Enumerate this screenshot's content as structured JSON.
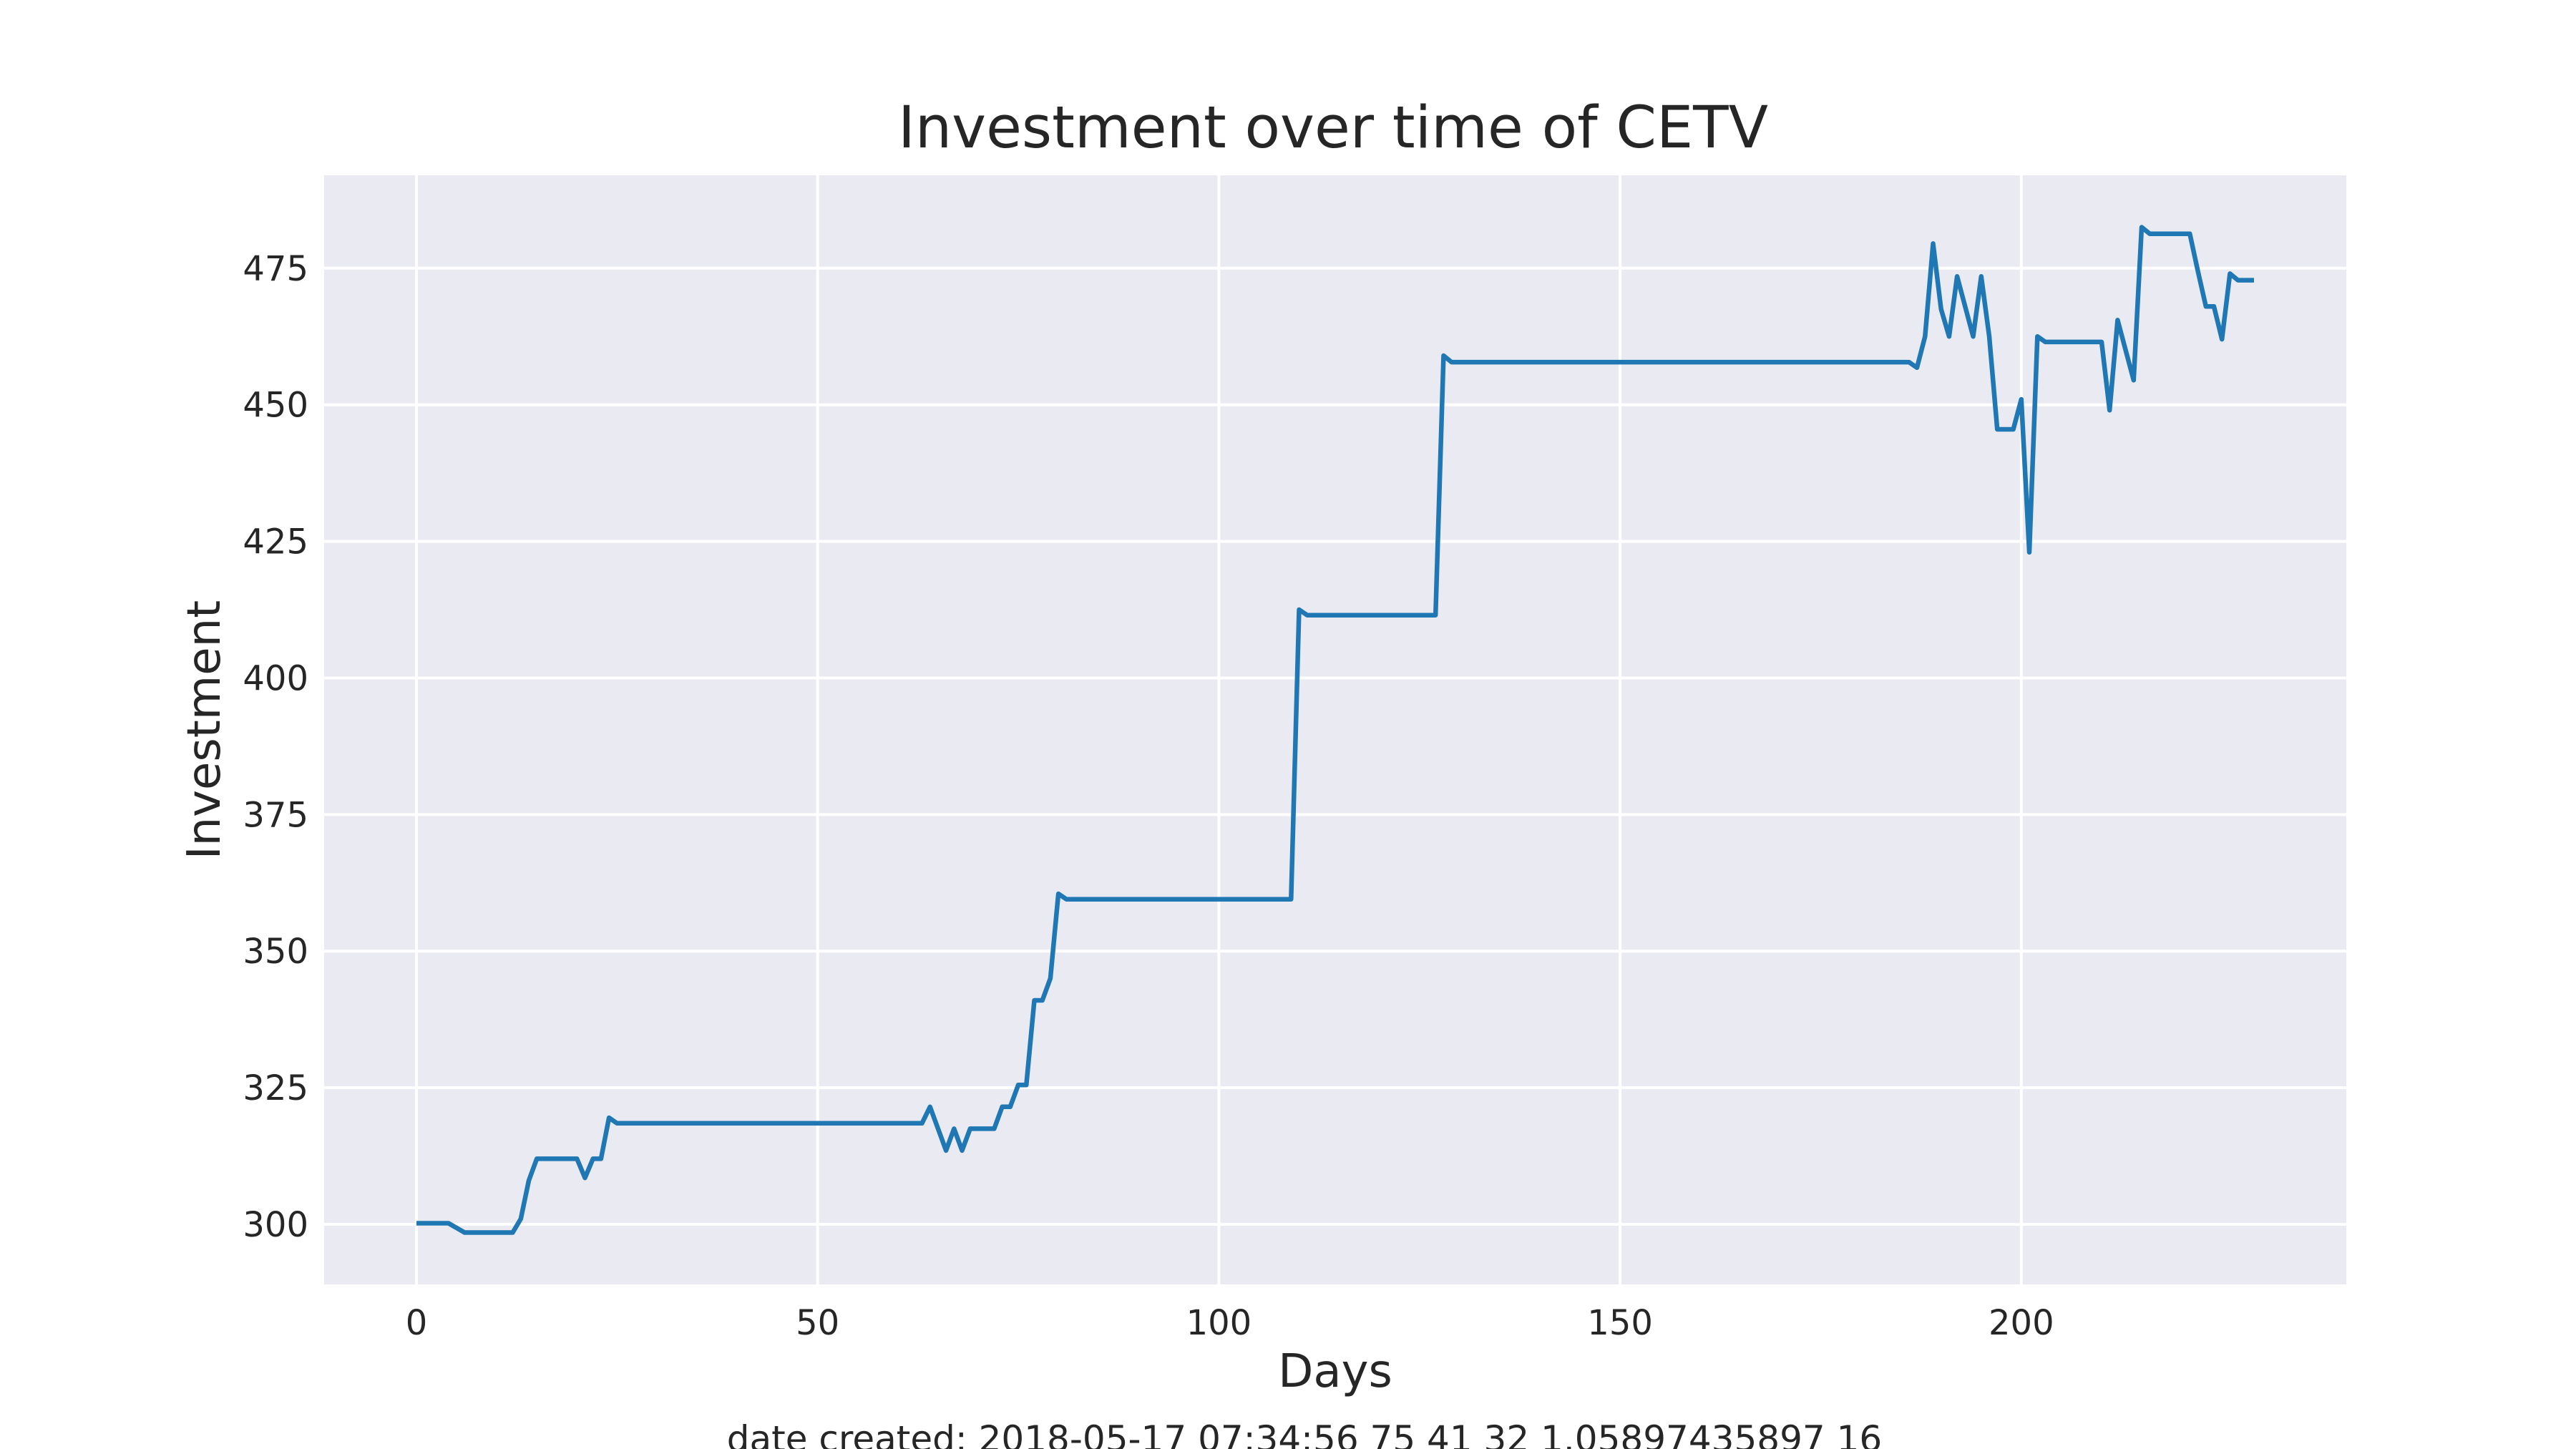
{
  "chart_data": {
    "type": "line",
    "title": "Investment over time of CETV",
    "xlabel": "Days",
    "ylabel": "Investment",
    "xlim": [
      -11.5,
      240.5
    ],
    "ylim": [
      289,
      492
    ],
    "x_ticks": [
      0,
      50,
      100,
      150,
      200
    ],
    "y_ticks": [
      300,
      325,
      350,
      375,
      400,
      425,
      450,
      475
    ],
    "grid": true,
    "legend": "none",
    "series": [
      {
        "color": "#1f77b4",
        "points": [
          [
            0,
            300.2
          ],
          [
            4,
            300.2
          ],
          [
            6,
            298.5
          ],
          [
            12,
            298.5
          ],
          [
            13,
            301
          ],
          [
            14,
            308
          ],
          [
            15,
            312
          ],
          [
            20,
            312
          ],
          [
            21,
            308.5
          ],
          [
            22,
            312
          ],
          [
            23,
            312
          ],
          [
            24,
            319.5
          ],
          [
            25,
            318.5
          ],
          [
            63,
            318.5
          ],
          [
            64,
            321.5
          ],
          [
            66,
            313.5
          ],
          [
            67,
            317.5
          ],
          [
            68,
            313.5
          ],
          [
            69,
            317.5
          ],
          [
            72,
            317.5
          ],
          [
            73,
            321.5
          ],
          [
            74,
            321.5
          ],
          [
            75,
            325.5
          ],
          [
            76,
            325.5
          ],
          [
            77,
            341
          ],
          [
            78,
            341
          ],
          [
            79,
            345
          ],
          [
            80,
            360.5
          ],
          [
            81,
            359.5
          ],
          [
            109,
            359.5
          ],
          [
            110,
            412.5
          ],
          [
            111,
            411.5
          ],
          [
            127,
            411.5
          ],
          [
            128,
            459
          ],
          [
            129,
            457.8
          ],
          [
            186,
            457.8
          ],
          [
            187,
            456.8
          ],
          [
            188,
            462.5
          ],
          [
            189,
            479.5
          ],
          [
            190,
            467.5
          ],
          [
            191,
            462.5
          ],
          [
            192,
            473.5
          ],
          [
            194,
            462.5
          ],
          [
            195,
            473.5
          ],
          [
            196,
            462.5
          ],
          [
            197,
            445.5
          ],
          [
            199,
            445.5
          ],
          [
            200,
            451
          ],
          [
            201,
            423
          ],
          [
            202,
            462.5
          ],
          [
            203,
            461.5
          ],
          [
            210,
            461.5
          ],
          [
            211,
            449
          ],
          [
            212,
            465.5
          ],
          [
            214,
            454.5
          ],
          [
            215,
            482.5
          ],
          [
            216,
            481.3
          ],
          [
            221,
            481.3
          ],
          [
            222,
            474.5
          ],
          [
            223,
            468
          ],
          [
            224,
            468
          ],
          [
            225,
            462
          ],
          [
            226,
            474
          ],
          [
            227,
            472.8
          ],
          [
            229,
            472.8
          ]
        ]
      }
    ]
  },
  "footer": {
    "text": "date created: 2018-05-17 07:34:56 75 41 32 1.05897435897 16"
  }
}
